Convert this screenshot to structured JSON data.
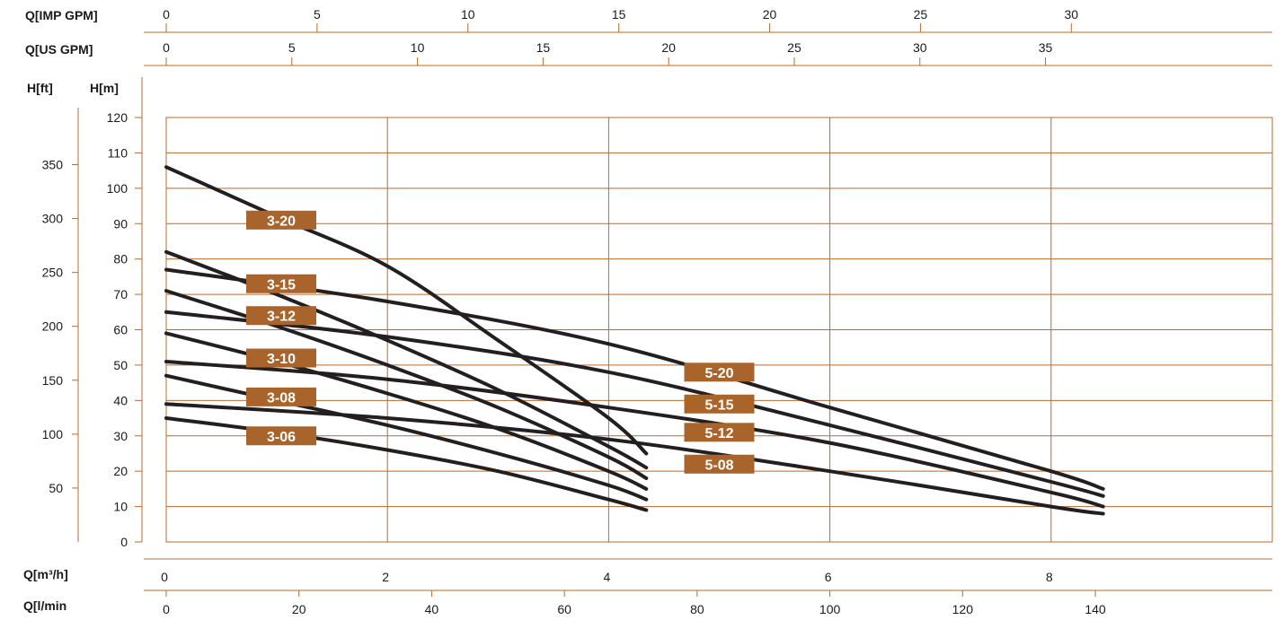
{
  "chart_data": {
    "type": "line",
    "title": "",
    "axes": {
      "imp_gpm": {
        "label": "Q[IMP GPM]",
        "ticks": [
          0,
          5,
          10,
          15,
          20,
          25,
          30
        ]
      },
      "us_gpm": {
        "label": "Q[US GPM]",
        "ticks": [
          0,
          5,
          10,
          15,
          20,
          25,
          30,
          35
        ]
      },
      "h_ft": {
        "label": "H[ft]",
        "ticks": [
          50,
          100,
          150,
          200,
          250,
          300,
          350
        ]
      },
      "h_m": {
        "label": "H[m]",
        "ticks": [
          0,
          10,
          20,
          30,
          40,
          50,
          60,
          70,
          80,
          90,
          100,
          110,
          120
        ],
        "range": [
          0,
          120
        ]
      },
      "q_m3h": {
        "label": "Q[m³/h]",
        "ticks": [
          0,
          2,
          4,
          6,
          8
        ],
        "range": [
          0,
          10
        ]
      },
      "q_lmin": {
        "label": "Q[l/min",
        "ticks": [
          0,
          20,
          40,
          60,
          80,
          100,
          120,
          140
        ]
      }
    },
    "grid": true,
    "series": [
      {
        "name": "3-20",
        "x": [
          0,
          1.0,
          2.0,
          3.0,
          4.0,
          4.34
        ],
        "y": [
          106,
          92,
          78,
          57,
          35,
          25
        ]
      },
      {
        "name": "3-15",
        "x": [
          0,
          1.0,
          2.0,
          3.0,
          4.0,
          4.34
        ],
        "y": [
          82,
          70,
          57,
          43,
          27,
          21
        ]
      },
      {
        "name": "3-12",
        "x": [
          0,
          1.0,
          2.0,
          3.0,
          4.0,
          4.34
        ],
        "y": [
          71,
          61,
          50,
          38,
          24,
          18
        ]
      },
      {
        "name": "3-10",
        "x": [
          0,
          1.0,
          2.0,
          3.0,
          4.0,
          4.34
        ],
        "y": [
          59,
          51,
          42,
          32,
          20,
          15
        ]
      },
      {
        "name": "3-08",
        "x": [
          0,
          1.0,
          2.0,
          3.0,
          4.0,
          4.34
        ],
        "y": [
          47,
          40,
          33,
          25,
          16,
          12
        ]
      },
      {
        "name": "3-06",
        "x": [
          0,
          1.0,
          2.0,
          3.0,
          4.0,
          4.34
        ],
        "y": [
          35,
          31,
          26,
          20,
          12,
          9
        ]
      },
      {
        "name": "5-20",
        "x": [
          0,
          2.0,
          4.0,
          6.0,
          8.0,
          8.47
        ],
        "y": [
          77,
          68,
          56,
          38,
          20,
          15
        ]
      },
      {
        "name": "5-15",
        "x": [
          0,
          2.0,
          4.0,
          6.0,
          8.0,
          8.47
        ],
        "y": [
          65,
          58,
          48,
          33,
          17,
          13
        ]
      },
      {
        "name": "5-12",
        "x": [
          0,
          2.0,
          4.0,
          6.0,
          8.0,
          8.47
        ],
        "y": [
          51,
          46,
          38,
          28,
          14,
          10
        ]
      },
      {
        "name": "5-08",
        "x": [
          0,
          2.0,
          4.0,
          6.0,
          8.0,
          8.47
        ],
        "y": [
          39,
          35,
          29,
          20,
          10,
          8
        ]
      }
    ],
    "labels": [
      {
        "text": "3-20",
        "x": 1.04,
        "y": 91
      },
      {
        "text": "3-15",
        "x": 1.04,
        "y": 73
      },
      {
        "text": "3-12",
        "x": 1.04,
        "y": 64
      },
      {
        "text": "3-10",
        "x": 1.04,
        "y": 52
      },
      {
        "text": "3-08",
        "x": 1.04,
        "y": 41
      },
      {
        "text": "3-06",
        "x": 1.04,
        "y": 30
      },
      {
        "text": "5-20",
        "x": 5.0,
        "y": 48
      },
      {
        "text": "5-15",
        "x": 5.0,
        "y": 39
      },
      {
        "text": "5-12",
        "x": 5.0,
        "y": 31
      },
      {
        "text": "5-08",
        "x": 5.0,
        "y": 22
      }
    ],
    "colors": {
      "grid": "#b86a2e",
      "curve": "#231f20",
      "label_bg": "#a8642a",
      "label_text": "#ffffff",
      "text": "#1a1a1a"
    }
  }
}
